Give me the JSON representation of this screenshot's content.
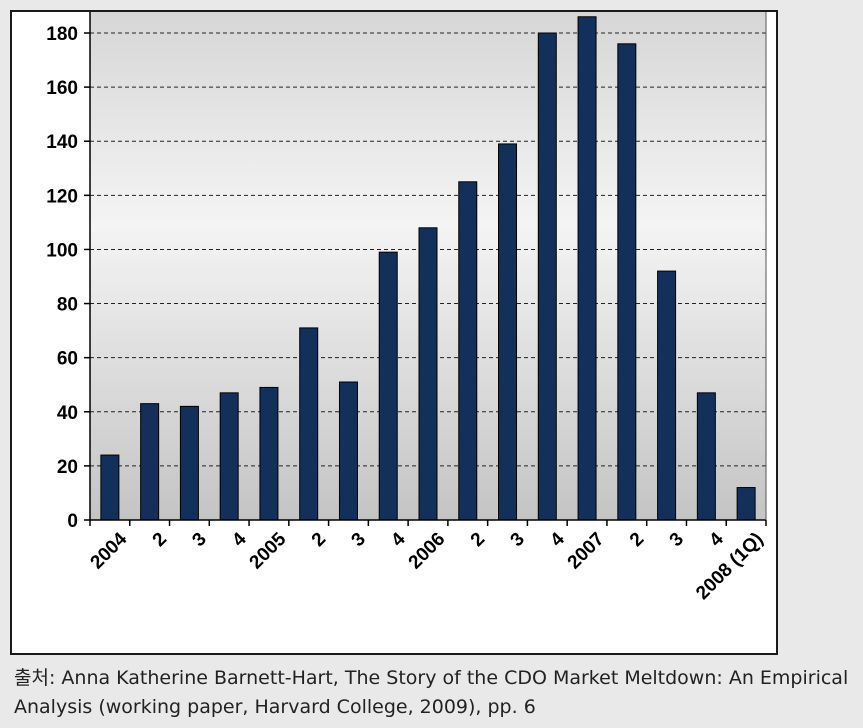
{
  "chart_data": {
    "type": "bar",
    "categories": [
      "2004",
      "2",
      "3",
      "4",
      "2005",
      "2",
      "3",
      "4",
      "2006",
      "2",
      "3",
      "4",
      "2007",
      "2",
      "3",
      "4",
      "2008 (1Q)"
    ],
    "values": [
      24,
      43,
      42,
      47,
      49,
      71,
      51,
      99,
      108,
      125,
      139,
      180,
      186,
      176,
      92,
      47,
      12
    ],
    "ylim": [
      0,
      180
    ],
    "yticks": [
      0,
      20,
      40,
      60,
      80,
      100,
      120,
      140,
      160,
      180
    ],
    "grid": "horizontal dashed",
    "title": "",
    "xlabel": "",
    "ylabel": ""
  },
  "colors": {
    "bar": "#13305a",
    "bar_outline": "#000000",
    "plot_bg_top": "#d6d6d6",
    "plot_bg_mid": "#f4f4f4",
    "plot_bg_bottom": "#c4c4c4"
  },
  "source": "출처: Anna Katherine Barnett-Hart, The Story of the CDO Market Meltdown: An Empirical Analysis (working paper, Harvard College, 2009), pp. 6"
}
